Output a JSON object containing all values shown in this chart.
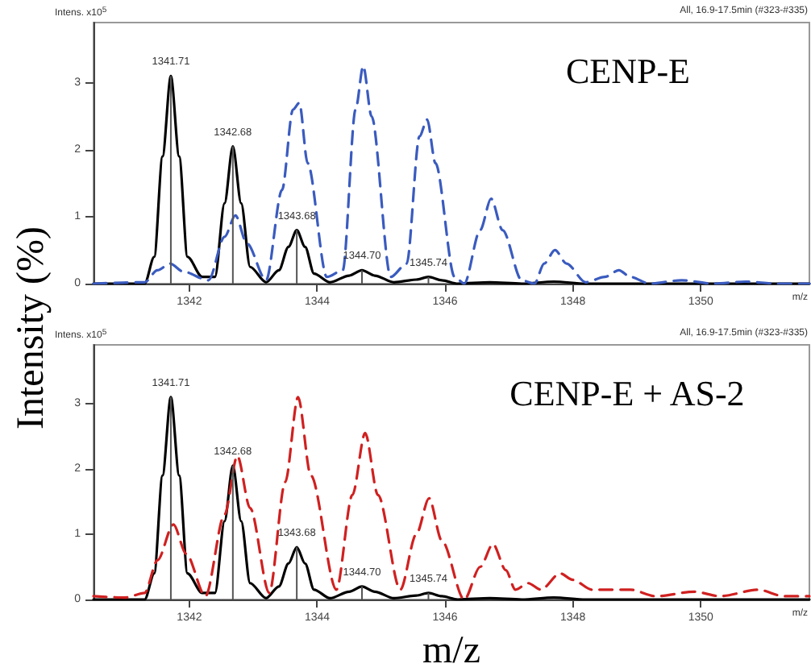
{
  "chart_data": [
    {
      "type": "line",
      "title": "CENP-E",
      "ylabel": "Intensity (%)",
      "xlim": [
        1340.5,
        1351.7
      ],
      "xticks": [
        1342,
        1344,
        1346,
        1348,
        1350
      ],
      "ylim": [
        0,
        3.9
      ],
      "yticks": [
        0,
        1,
        2,
        3
      ],
      "annotations": [
        "Intens. x10$^{5}$",
        "All, 16.9-17.5min (#323-#335)",
        "m/z",
        {
          "text": "1341.71",
          "x": 1341.71,
          "y": 3.1
        },
        {
          "text": "1342.68",
          "x": 1342.68,
          "y": 2.05
        },
        {
          "text": "1343.68",
          "x": 1343.68,
          "y": 0.8
        },
        {
          "text": "1344.70",
          "x": 1344.7,
          "y": 0.2
        },
        {
          "text": "1345.74",
          "x": 1345.74,
          "y": 0.1
        }
      ],
      "series": [
        {
          "type": "bar",
          "color": "#555555",
          "x": [
            1341.71,
            1342.68,
            1343.68,
            1344.7,
            1345.74
          ],
          "values": [
            3.1,
            2.05,
            0.8,
            0.2,
            0.1
          ]
        },
        {
          "color": "#000000",
          "line_style": "solid",
          "x": [
            1340.5,
            1341.3,
            1341.45,
            1341.58,
            1341.71,
            1341.84,
            1341.97,
            1342.2,
            1342.4,
            1342.55,
            1342.68,
            1342.81,
            1342.95,
            1343.2,
            1343.4,
            1343.55,
            1343.68,
            1343.81,
            1343.95,
            1344.2,
            1344.5,
            1344.7,
            1344.9,
            1345.2,
            1345.55,
            1345.74,
            1345.95,
            1346.2,
            1346.7,
            1347.2,
            1347.7,
            1348.2,
            1351.7
          ],
          "values": [
            0,
            0,
            0.4,
            1.9,
            3.1,
            1.9,
            0.4,
            0.1,
            0.1,
            1.2,
            2.05,
            1.2,
            0.25,
            0.02,
            0.2,
            0.55,
            0.8,
            0.55,
            0.15,
            0.02,
            0.12,
            0.2,
            0.12,
            0.02,
            0.06,
            0.1,
            0.05,
            0,
            0.02,
            0,
            0.03,
            0,
            0
          ]
        },
        {
          "color": "#3a5bbf",
          "line_style": "dashed",
          "x": [
            1340.5,
            1341.3,
            1341.5,
            1341.7,
            1341.9,
            1342.3,
            1342.55,
            1342.72,
            1342.9,
            1343.2,
            1343.45,
            1343.62,
            1343.72,
            1343.85,
            1344.15,
            1344.4,
            1344.6,
            1344.72,
            1344.85,
            1345.15,
            1345.4,
            1345.6,
            1345.72,
            1345.85,
            1346.15,
            1346.3,
            1346.55,
            1346.72,
            1346.9,
            1347.2,
            1347.4,
            1347.55,
            1347.72,
            1347.9,
            1348.2,
            1348.5,
            1348.72,
            1348.9,
            1349.2,
            1349.7,
            1350.2,
            1350.7,
            1351.2,
            1351.7
          ],
          "values": [
            0,
            0.02,
            0.2,
            0.3,
            0.18,
            0.05,
            0.7,
            1.02,
            0.6,
            0.05,
            1.4,
            2.6,
            2.7,
            1.8,
            0.1,
            0.2,
            2.6,
            3.25,
            2.5,
            0.1,
            0.3,
            2.2,
            2.45,
            1.8,
            0.1,
            0,
            0.8,
            1.27,
            0.8,
            0.05,
            0,
            0.3,
            0.5,
            0.3,
            0.02,
            0.1,
            0.2,
            0.1,
            0,
            0.05,
            0,
            0.03,
            0,
            0
          ]
        }
      ]
    },
    {
      "type": "line",
      "title": "CENP-E + AS-2",
      "xlabel": "m/z",
      "xlim": [
        1340.5,
        1351.7
      ],
      "xticks": [
        1342,
        1344,
        1346,
        1348,
        1350
      ],
      "ylim": [
        0,
        3.9
      ],
      "yticks": [
        0,
        1,
        2,
        3
      ],
      "annotations": [
        "Intens. x10$^{5}$",
        "All, 16.9-17.5min (#323-#335)",
        "m/z",
        {
          "text": "1341.71",
          "x": 1341.71,
          "y": 3.1
        },
        {
          "text": "1342.68",
          "x": 1342.68,
          "y": 2.05
        },
        {
          "text": "1343.68",
          "x": 1343.68,
          "y": 0.8
        },
        {
          "text": "1344.70",
          "x": 1344.7,
          "y": 0.2
        },
        {
          "text": "1345.74",
          "x": 1345.74,
          "y": 0.1
        }
      ],
      "series": [
        {
          "type": "bar",
          "color": "#555555",
          "x": [
            1341.71,
            1342.68,
            1343.68,
            1344.7,
            1345.74
          ],
          "values": [
            3.1,
            2.05,
            0.8,
            0.2,
            0.1
          ]
        },
        {
          "color": "#000000",
          "line_style": "solid",
          "x": [
            1340.5,
            1341.3,
            1341.45,
            1341.58,
            1341.71,
            1341.84,
            1341.97,
            1342.2,
            1342.4,
            1342.55,
            1342.68,
            1342.81,
            1342.95,
            1343.2,
            1343.4,
            1343.55,
            1343.68,
            1343.81,
            1343.95,
            1344.2,
            1344.5,
            1344.7,
            1344.9,
            1345.2,
            1345.55,
            1345.74,
            1345.95,
            1346.2,
            1346.7,
            1347.2,
            1347.7,
            1348.2,
            1351.7
          ],
          "values": [
            0,
            0,
            0.4,
            1.9,
            3.1,
            1.9,
            0.4,
            0.1,
            0.1,
            1.2,
            2.05,
            1.2,
            0.25,
            0.02,
            0.2,
            0.55,
            0.8,
            0.55,
            0.15,
            0.02,
            0.12,
            0.2,
            0.12,
            0.02,
            0.06,
            0.1,
            0.05,
            0,
            0.02,
            0,
            0.03,
            0,
            0
          ]
        },
        {
          "color": "#d02020",
          "line_style": "dashed",
          "x": [
            1340.5,
            1341.0,
            1341.3,
            1341.5,
            1341.75,
            1341.95,
            1342.25,
            1342.55,
            1342.75,
            1342.95,
            1343.25,
            1343.5,
            1343.7,
            1343.9,
            1344.3,
            1344.55,
            1344.75,
            1344.95,
            1345.3,
            1345.55,
            1345.75,
            1345.95,
            1346.3,
            1346.55,
            1346.75,
            1346.95,
            1347.1,
            1347.3,
            1347.5,
            1347.8,
            1348.0,
            1348.3,
            1348.6,
            1348.9,
            1349.3,
            1349.9,
            1350.3,
            1350.9,
            1351.3,
            1351.7
          ],
          "values": [
            0.05,
            0.03,
            0.1,
            0.6,
            1.15,
            0.7,
            0.05,
            1.3,
            2.2,
            1.4,
            0.1,
            1.8,
            3.1,
            1.9,
            0.15,
            1.6,
            2.55,
            1.6,
            0.15,
            1.0,
            1.55,
            0.9,
            0,
            0.5,
            0.85,
            0.45,
            0.15,
            0.25,
            0.15,
            0.4,
            0.3,
            0.15,
            0.15,
            0.15,
            0.05,
            0.12,
            0.05,
            0.15,
            0.05,
            0.05
          ]
        }
      ]
    }
  ]
}
